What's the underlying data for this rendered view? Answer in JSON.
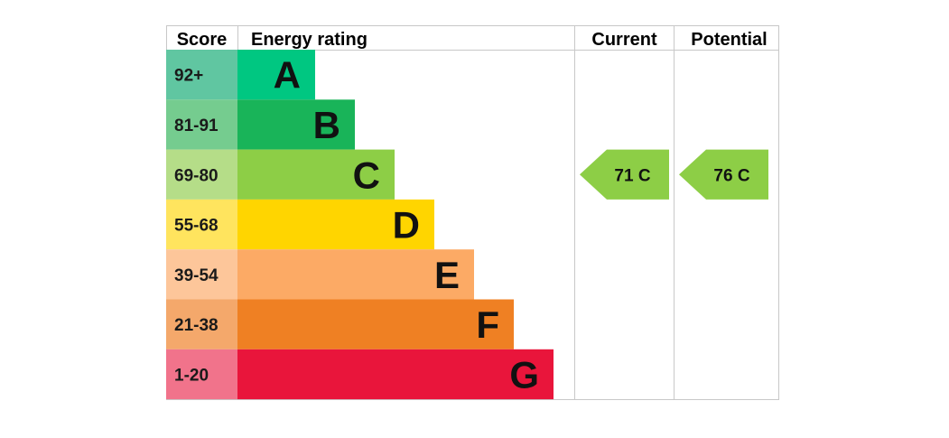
{
  "chart_data": {
    "type": "bar",
    "title": "",
    "headers": {
      "score": "Score",
      "energy_rating": "Energy rating",
      "current": "Current",
      "potential": "Potential"
    },
    "bands": [
      {
        "letter": "A",
        "score_range": "92+",
        "bar_color": "#00c781",
        "score_color": "#60c6a1"
      },
      {
        "letter": "B",
        "score_range": "81-91",
        "bar_color": "#19b459",
        "score_color": "#75cc8f"
      },
      {
        "letter": "C",
        "score_range": "69-80",
        "bar_color": "#8dce46",
        "score_color": "#b5dd88"
      },
      {
        "letter": "D",
        "score_range": "55-68",
        "bar_color": "#ffd500",
        "score_color": "#ffe45e"
      },
      {
        "letter": "E",
        "score_range": "39-54",
        "bar_color": "#fcaa65",
        "score_color": "#fdc69a"
      },
      {
        "letter": "F",
        "score_range": "21-38",
        "bar_color": "#ef8023",
        "score_color": "#f4a86b"
      },
      {
        "letter": "G",
        "score_range": "1-20",
        "bar_color": "#e9153b",
        "score_color": "#f1738b"
      }
    ],
    "current": {
      "value": 71,
      "band": "C",
      "label": "71  C",
      "color": "#8dce46"
    },
    "potential": {
      "value": 76,
      "band": "C",
      "label": "76  C",
      "color": "#8dce46"
    }
  }
}
